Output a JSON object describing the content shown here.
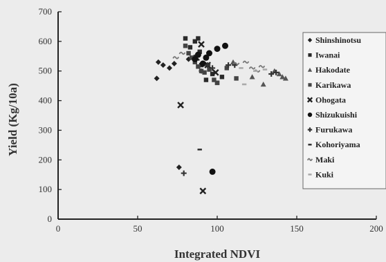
{
  "chart_data": {
    "type": "scatter",
    "xlabel": "Integrated NDVI",
    "ylabel": "Yield  (Kg/10a)",
    "xlim": [
      0,
      200
    ],
    "ylim": [
      0,
      700
    ],
    "xticks": [
      "0",
      "50",
      "100",
      "150",
      "200"
    ],
    "yticks": [
      "0",
      "100",
      "200",
      "300",
      "400",
      "500",
      "600",
      "700"
    ],
    "legend_position": "right",
    "series": [
      {
        "name": "Shinshinotsu",
        "marker": "diamond",
        "color": "#222222",
        "points": [
          [
            62,
            475
          ],
          [
            63,
            530
          ],
          [
            66,
            520
          ],
          [
            70,
            510
          ],
          [
            73,
            525
          ],
          [
            76,
            175
          ],
          [
            82,
            540
          ],
          [
            90,
            500
          ]
        ]
      },
      {
        "name": "Iwanai",
        "marker": "square",
        "color": "#2a2a2a",
        "points": [
          [
            80,
            610
          ],
          [
            83,
            580
          ],
          [
            86,
            600
          ],
          [
            88,
            610
          ],
          [
            89,
            565
          ],
          [
            90,
            520
          ],
          [
            93,
            470
          ],
          [
            97,
            490
          ],
          [
            100,
            460
          ],
          [
            103,
            480
          ]
        ]
      },
      {
        "name": "Hakodate",
        "marker": "triangle",
        "color": "#555555",
        "points": [
          [
            110,
            530
          ],
          [
            122,
            480
          ],
          [
            129,
            455
          ],
          [
            136,
            500
          ],
          [
            139,
            490
          ],
          [
            141,
            480
          ],
          [
            143,
            475
          ]
        ]
      },
      {
        "name": "Karikawa",
        "marker": "square",
        "color": "#444444",
        "points": [
          [
            80,
            585
          ],
          [
            82,
            560
          ],
          [
            84,
            545
          ],
          [
            86,
            530
          ],
          [
            88,
            515
          ],
          [
            90,
            500
          ],
          [
            92,
            495
          ],
          [
            95,
            505
          ],
          [
            98,
            470
          ],
          [
            100,
            460
          ],
          [
            106,
            510
          ],
          [
            112,
            475
          ]
        ]
      },
      {
        "name": "Ohogata",
        "marker": "x",
        "color": "#222222",
        "points": [
          [
            77,
            385
          ],
          [
            91,
            95
          ],
          [
            87,
            545
          ],
          [
            90,
            590
          ],
          [
            94,
            520
          ],
          [
            99,
            495
          ]
        ]
      },
      {
        "name": "Shizukuishi",
        "marker": "circle",
        "color": "#111111",
        "points": [
          [
            86,
            540
          ],
          [
            88,
            555
          ],
          [
            91,
            525
          ],
          [
            93,
            545
          ],
          [
            95,
            560
          ],
          [
            97,
            160
          ],
          [
            100,
            575
          ],
          [
            105,
            585
          ]
        ]
      },
      {
        "name": "Furukawa",
        "marker": "plus",
        "color": "#333333",
        "points": [
          [
            79,
            155
          ],
          [
            94,
            520
          ],
          [
            97,
            510
          ],
          [
            107,
            520
          ],
          [
            111,
            520
          ],
          [
            134,
            490
          ],
          [
            137,
            495
          ]
        ]
      },
      {
        "name": "Kohoriyama",
        "marker": "dash",
        "color": "#333333",
        "points": [
          [
            89,
            235
          ]
        ]
      },
      {
        "name": "Maki",
        "marker": "tilde",
        "color": "#777777",
        "points": [
          [
            112,
            525
          ],
          [
            118,
            530
          ],
          [
            122,
            510
          ],
          [
            125,
            500
          ],
          [
            128,
            515
          ],
          [
            74,
            545
          ],
          [
            78,
            560
          ]
        ]
      },
      {
        "name": "Kuki",
        "marker": "dash",
        "color": "#aaaaaa",
        "points": [
          [
            115,
            510
          ],
          [
            117,
            455
          ],
          [
            124,
            500
          ],
          [
            130,
            505
          ]
        ]
      }
    ]
  }
}
